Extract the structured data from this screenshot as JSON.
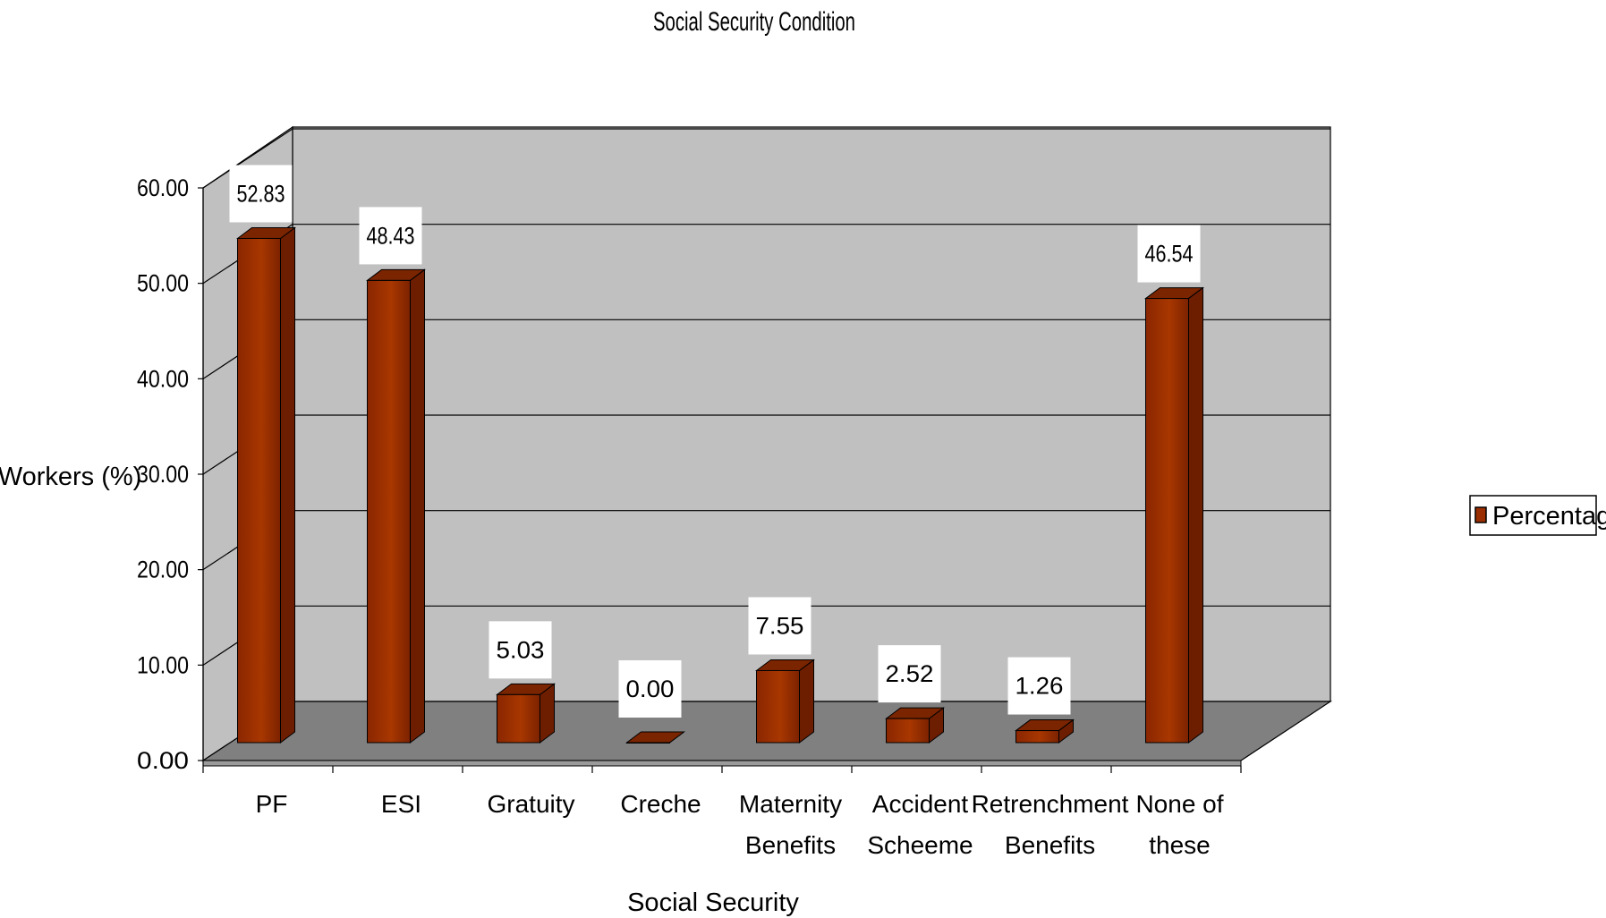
{
  "chart_data": {
    "type": "bar",
    "title": "Social Security Condition",
    "xlabel": "Social Security",
    "ylabel": "Workers (%)",
    "ylim": [
      0,
      60
    ],
    "yticks": [
      "0.00",
      "10.00",
      "20.00",
      "30.00",
      "40.00",
      "50.00",
      "60.00"
    ],
    "categories": [
      [
        "PF"
      ],
      [
        "ESI"
      ],
      [
        "Gratuity"
      ],
      [
        "Creche"
      ],
      [
        "Maternity",
        "Benefits"
      ],
      [
        "Accident",
        "Scheeme"
      ],
      [
        "Retrenchment",
        "Benefits"
      ],
      [
        "None of",
        "these"
      ]
    ],
    "series": [
      {
        "name": "Percentage",
        "values": [
          52.83,
          48.43,
          5.03,
          0.0,
          7.55,
          2.52,
          1.26,
          46.54
        ],
        "labels": [
          "52.83",
          "48.43",
          "5.03",
          "0.00",
          "7.55",
          "2.52",
          "1.26",
          "46.54"
        ],
        "color": "#9a2e00"
      }
    ],
    "legend_position": "right",
    "grid": true,
    "style": "3d-bar",
    "colors": {
      "wall": "#c0c0c0",
      "floor": "#808080",
      "bar_front": "#9a2e00",
      "bar_side": "#6e1e00",
      "bar_top": "#7a2400"
    }
  }
}
